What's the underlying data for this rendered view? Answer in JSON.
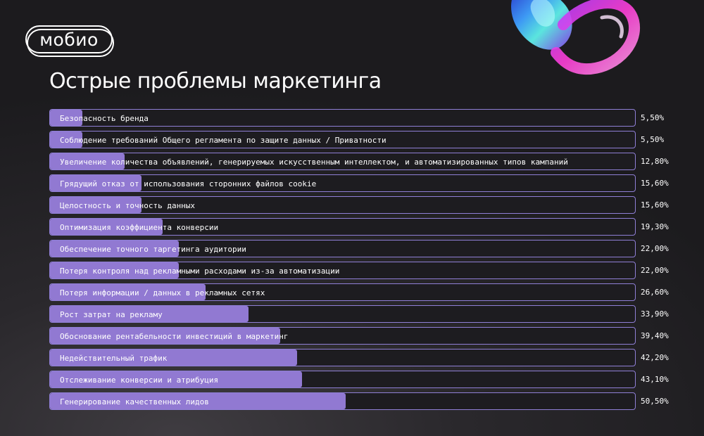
{
  "logo": {
    "text": "мобио"
  },
  "title": "Острые проблемы маркетинга",
  "colors": {
    "bar_fill": "#9179d2",
    "bar_border": "#8f7fd6",
    "track": "#1d1c20",
    "text": "#ffffff"
  },
  "chart_data": {
    "type": "bar",
    "orientation": "horizontal",
    "title": "Острые проблемы маркетинга",
    "xlim": [
      0,
      100
    ],
    "grid": false,
    "legend": "none",
    "categories": [
      "Безопасность бренда",
      "Соблюдение требований Общего регламента по защите данных / Приватности",
      "Увеличение количества объявлений, генерируемых искусственным интеллектом, и автоматизированных типов кампаний",
      "Грядущий отказ от использования сторонних файлов cookie",
      "Целостность и точность данных",
      "Оптимизация коэффициента конверсии",
      "Обеспечение точного таргетинга аудитории",
      "Потеря контроля над рекламными расходами из-за автоматизации",
      "Потеря информации / данных в рекламных сетях",
      "Рост затрат на рекламу",
      "Обоснование рентабельности инвестиций в маркетинг",
      "Недействительный трафик",
      "Отслеживание конверсии и атрибуция",
      "Генерирование качественных лидов"
    ],
    "values": [
      5.5,
      5.5,
      12.8,
      15.6,
      15.6,
      19.3,
      22.0,
      22.0,
      26.6,
      33.9,
      39.4,
      42.2,
      43.1,
      50.5
    ],
    "value_labels": [
      "5,50%",
      "5,50%",
      "12,80%",
      "15,60%",
      "15,60%",
      "19,30%",
      "22,00%",
      "22,00%",
      "26,60%",
      "33,90%",
      "39,40%",
      "42,20%",
      "43,10%",
      "50,50%"
    ]
  }
}
